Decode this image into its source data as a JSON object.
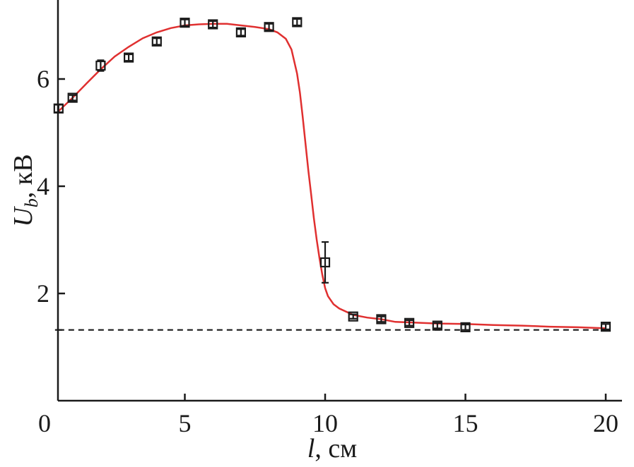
{
  "chart_data": {
    "type": "scatter",
    "xlabel": {
      "var": "l",
      "unit": ", см"
    },
    "ylabel": {
      "var": "U",
      "sub": "b",
      "unit": ", кВ"
    },
    "xlim": [
      0,
      21
    ],
    "ylim": [
      0,
      7.4
    ],
    "x_ticks": [
      0,
      5,
      10,
      15,
      20
    ],
    "x_tick_labels": [
      "0",
      "5",
      "10",
      "15",
      "20"
    ],
    "y_ticks": [
      2,
      4,
      6
    ],
    "y_tick_labels": [
      "2",
      "4",
      "6"
    ],
    "grid": false,
    "series": [
      {
        "kind": "markers",
        "color": "#1a1a1a",
        "points": [
          {
            "x": 0.5,
            "y": 5.45,
            "err": 0.07
          },
          {
            "x": 1.0,
            "y": 5.65,
            "err": 0.05
          },
          {
            "x": 2.0,
            "y": 6.25,
            "err": 0.1
          },
          {
            "x": 3.0,
            "y": 6.4,
            "err": 0.06
          },
          {
            "x": 4.0,
            "y": 6.7,
            "err": 0.06
          },
          {
            "x": 5.0,
            "y": 7.05,
            "err": 0.06
          },
          {
            "x": 6.0,
            "y": 7.02,
            "err": 0.06
          },
          {
            "x": 7.0,
            "y": 6.87,
            "err": 0.06
          },
          {
            "x": 8.0,
            "y": 6.97,
            "err": 0.06
          },
          {
            "x": 9.0,
            "y": 7.06,
            "err": 0.06
          },
          {
            "x": 10.0,
            "y": 2.58,
            "err": 0.38
          },
          {
            "x": 11.0,
            "y": 1.57,
            "err": 0.04
          },
          {
            "x": 12.0,
            "y": 1.52,
            "err": 0.05
          },
          {
            "x": 13.0,
            "y": 1.45,
            "err": 0.05
          },
          {
            "x": 14.0,
            "y": 1.4,
            "err": 0.05
          },
          {
            "x": 15.0,
            "y": 1.37,
            "err": 0.05
          },
          {
            "x": 20.0,
            "y": 1.38,
            "err": 0.05
          }
        ]
      },
      {
        "kind": "line",
        "color": "#e03030",
        "x": [
          0.5,
          1.0,
          1.5,
          2.0,
          2.5,
          3.0,
          3.5,
          4.0,
          4.5,
          5.0,
          5.5,
          6.0,
          6.5,
          7.0,
          7.5,
          8.0,
          8.3,
          8.6,
          8.8,
          9.0,
          9.1,
          9.2,
          9.3,
          9.4,
          9.5,
          9.6,
          9.7,
          9.8,
          9.9,
          10.0,
          10.1,
          10.3,
          10.5,
          11.0,
          11.5,
          12.0,
          12.5,
          13.0,
          14.0,
          15.0,
          16.0,
          17.0,
          18.0,
          19.0,
          20.0
        ],
        "y": [
          5.4,
          5.65,
          5.92,
          6.18,
          6.42,
          6.6,
          6.76,
          6.87,
          6.95,
          7.0,
          7.02,
          7.03,
          7.03,
          7.0,
          6.97,
          6.93,
          6.87,
          6.75,
          6.55,
          6.1,
          5.75,
          5.3,
          4.8,
          4.3,
          3.85,
          3.4,
          3.0,
          2.65,
          2.35,
          2.1,
          1.95,
          1.8,
          1.72,
          1.6,
          1.55,
          1.52,
          1.47,
          1.46,
          1.44,
          1.43,
          1.41,
          1.4,
          1.38,
          1.37,
          1.35
        ]
      },
      {
        "kind": "reference",
        "style": "dashed",
        "color": "#1a1a1a",
        "y": 1.32,
        "x_range": [
          0.5,
          20.0
        ],
        "err": 0.02
      }
    ]
  }
}
